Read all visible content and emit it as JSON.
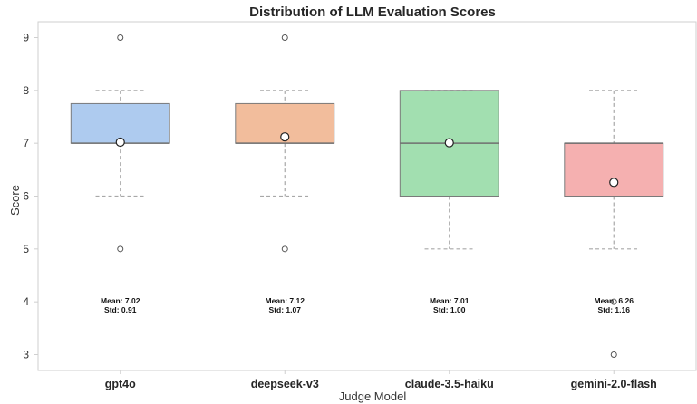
{
  "chart_data": {
    "type": "box",
    "title": "Distribution of LLM Evaluation Scores",
    "xlabel": "Judge Model",
    "ylabel": "Score",
    "ylim": [
      2.7,
      9.3
    ],
    "yticks": [
      3,
      4,
      5,
      6,
      7,
      8,
      9
    ],
    "grid": false,
    "categories": [
      "gpt4o",
      "deepseek-v3",
      "claude-3.5-haiku",
      "gemini-2.0-flash"
    ],
    "series": [
      {
        "category": "gpt4o",
        "color": "#aecbef",
        "whisker_low": 6,
        "q1": 7,
        "median": 7,
        "q3": 7.75,
        "whisker_high": 8,
        "mean": 7.02,
        "std": 0.91,
        "outliers": [
          5,
          9
        ],
        "mean_label": "Mean: 7.02",
        "std_label": "Std: 0.91"
      },
      {
        "category": "deepseek-v3",
        "color": "#f2bd9c",
        "whisker_low": 6,
        "q1": 7,
        "median": 7,
        "q3": 7.75,
        "whisker_high": 8,
        "mean": 7.12,
        "std": 1.07,
        "outliers": [
          5,
          9
        ],
        "mean_label": "Mean: 7.12",
        "std_label": "Std: 1.07"
      },
      {
        "category": "claude-3.5-haiku",
        "color": "#a2dfb0",
        "whisker_low": 5,
        "q1": 6,
        "median": 7,
        "q3": 8,
        "whisker_high": 8,
        "mean": 7.01,
        "std": 1.0,
        "outliers": [],
        "mean_label": "Mean: 7.01",
        "std_label": "Std: 1.00"
      },
      {
        "category": "gemini-2.0-flash",
        "color": "#f5b0b0",
        "whisker_low": 5,
        "q1": 6,
        "median": 7,
        "q3": 7,
        "whisker_high": 8,
        "mean": 6.26,
        "std": 1.16,
        "outliers": [
          3,
          4
        ],
        "mean_label": "Mean: 6.26",
        "std_label": "Std: 1.16"
      }
    ],
    "annotation_y": 4
  }
}
